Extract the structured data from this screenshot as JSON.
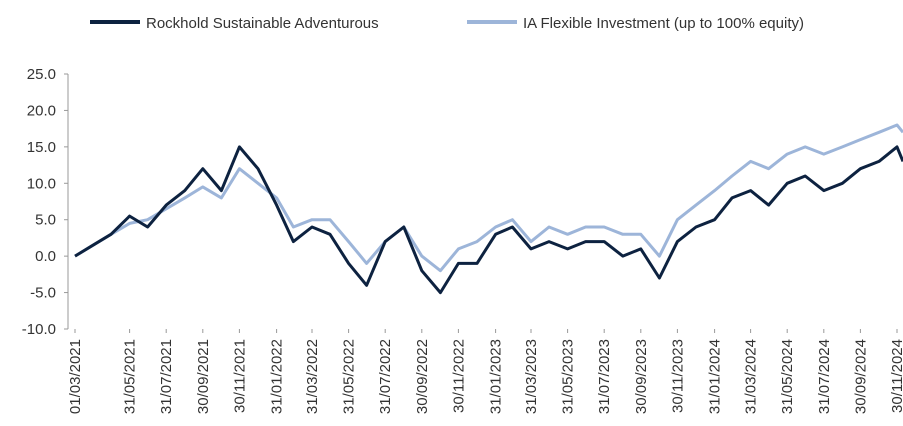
{
  "chart_data": {
    "type": "line",
    "x": [
      "01/03/2021",
      "31/03/2021",
      "30/04/2021",
      "31/05/2021",
      "30/06/2021",
      "31/07/2021",
      "31/08/2021",
      "30/09/2021",
      "31/10/2021",
      "30/11/2021",
      "31/12/2021",
      "31/01/2022",
      "28/02/2022",
      "31/03/2022",
      "30/04/2022",
      "31/05/2022",
      "30/06/2022",
      "31/07/2022",
      "31/08/2022",
      "30/09/2022",
      "31/10/2022",
      "30/11/2022",
      "31/12/2022",
      "31/01/2023",
      "28/02/2023",
      "31/03/2023",
      "30/04/2023",
      "31/05/2023",
      "30/06/2023",
      "31/07/2023",
      "31/08/2023",
      "30/09/2023",
      "31/10/2023",
      "30/11/2023",
      "31/12/2023",
      "31/01/2024",
      "29/02/2024",
      "31/03/2024",
      "30/04/2024",
      "31/05/2024",
      "30/06/2024",
      "31/07/2024",
      "31/08/2024",
      "30/09/2024",
      "31/10/2024",
      "30/11/2024",
      "10/12/2024"
    ],
    "series": [
      {
        "name": "Rockhold Sustainable Adventurous",
        "color": "#0d2240",
        "values": [
          0,
          1.5,
          3,
          5.5,
          4,
          7,
          9,
          12,
          9,
          15,
          12,
          7,
          2,
          4,
          3,
          -1,
          -4,
          2,
          4,
          -2,
          -5,
          -1,
          -1,
          3,
          4,
          1,
          2,
          1,
          2,
          2,
          0,
          1,
          -3,
          2,
          4,
          5,
          8,
          9,
          7,
          10,
          11,
          9,
          10,
          12,
          13,
          15,
          13
        ]
      },
      {
        "name": "IA Flexible Investment (up to 100% equity)",
        "color": "#9db5d9",
        "values": [
          0,
          1.5,
          3,
          4.5,
          5,
          6.5,
          8,
          9.5,
          8,
          12,
          10,
          8,
          4,
          5,
          5,
          2,
          -1,
          2,
          4,
          0,
          -2,
          1,
          2,
          4,
          5,
          2,
          4,
          3,
          4,
          4,
          3,
          3,
          0,
          5,
          7,
          9,
          11,
          13,
          12,
          14,
          15,
          14,
          15,
          16,
          17,
          18,
          17
        ]
      }
    ],
    "xlim": [
      "01/03/2021",
      "10/12/2024"
    ],
    "xticks": [
      "01/03/2021",
      "31/05/2021",
      "31/07/2021",
      "30/09/2021",
      "30/11/2021",
      "31/01/2022",
      "31/03/2022",
      "31/05/2022",
      "31/07/2022",
      "30/09/2022",
      "30/11/2022",
      "31/01/2023",
      "31/03/2023",
      "31/05/2023",
      "31/07/2023",
      "30/09/2023",
      "30/11/2023",
      "31/01/2024",
      "31/03/2024",
      "31/05/2024",
      "31/07/2024",
      "30/09/2024",
      "30/11/2024"
    ],
    "ylim": [
      -10,
      25
    ],
    "yticks": [
      {
        "value": 25,
        "label": "25.0"
      },
      {
        "value": 20,
        "label": "20.0"
      },
      {
        "value": 15,
        "label": "15.0"
      },
      {
        "value": 10,
        "label": "10.0"
      },
      {
        "value": 5,
        "label": "5.0"
      },
      {
        "value": 0,
        "label": "0.0"
      },
      {
        "value": -5,
        "label": "-5.0"
      },
      {
        "value": -10,
        "label": "-10.0"
      }
    ],
    "legend": "top"
  }
}
